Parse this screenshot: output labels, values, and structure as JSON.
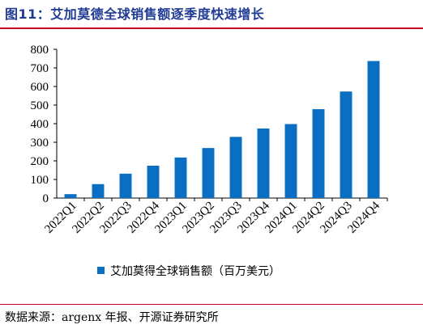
{
  "figure": {
    "title": "图11：艾加莫德全球销售额逐季度快速增长",
    "source": "数据来源：argenx 年报、开源证券研究所"
  },
  "chart_data": {
    "type": "bar",
    "categories": [
      "2022Q1",
      "2022Q2",
      "2022Q3",
      "2022Q4",
      "2023Q1",
      "2023Q2",
      "2023Q3",
      "2023Q4",
      "2024Q1",
      "2024Q2",
      "2024Q3",
      "2024Q4"
    ],
    "series": [
      {
        "name": "艾加莫得全球销售额（百万美元）",
        "values": [
          21,
          75,
          131,
          174,
          218,
          269,
          329,
          374,
          398,
          478,
          573,
          737
        ],
        "color": "#0a6fc2"
      }
    ],
    "yticks": [
      0,
      100,
      200,
      300,
      400,
      500,
      600,
      700,
      800
    ],
    "ylim": [
      0,
      800
    ],
    "grid": false,
    "legend_position": "bottom"
  }
}
